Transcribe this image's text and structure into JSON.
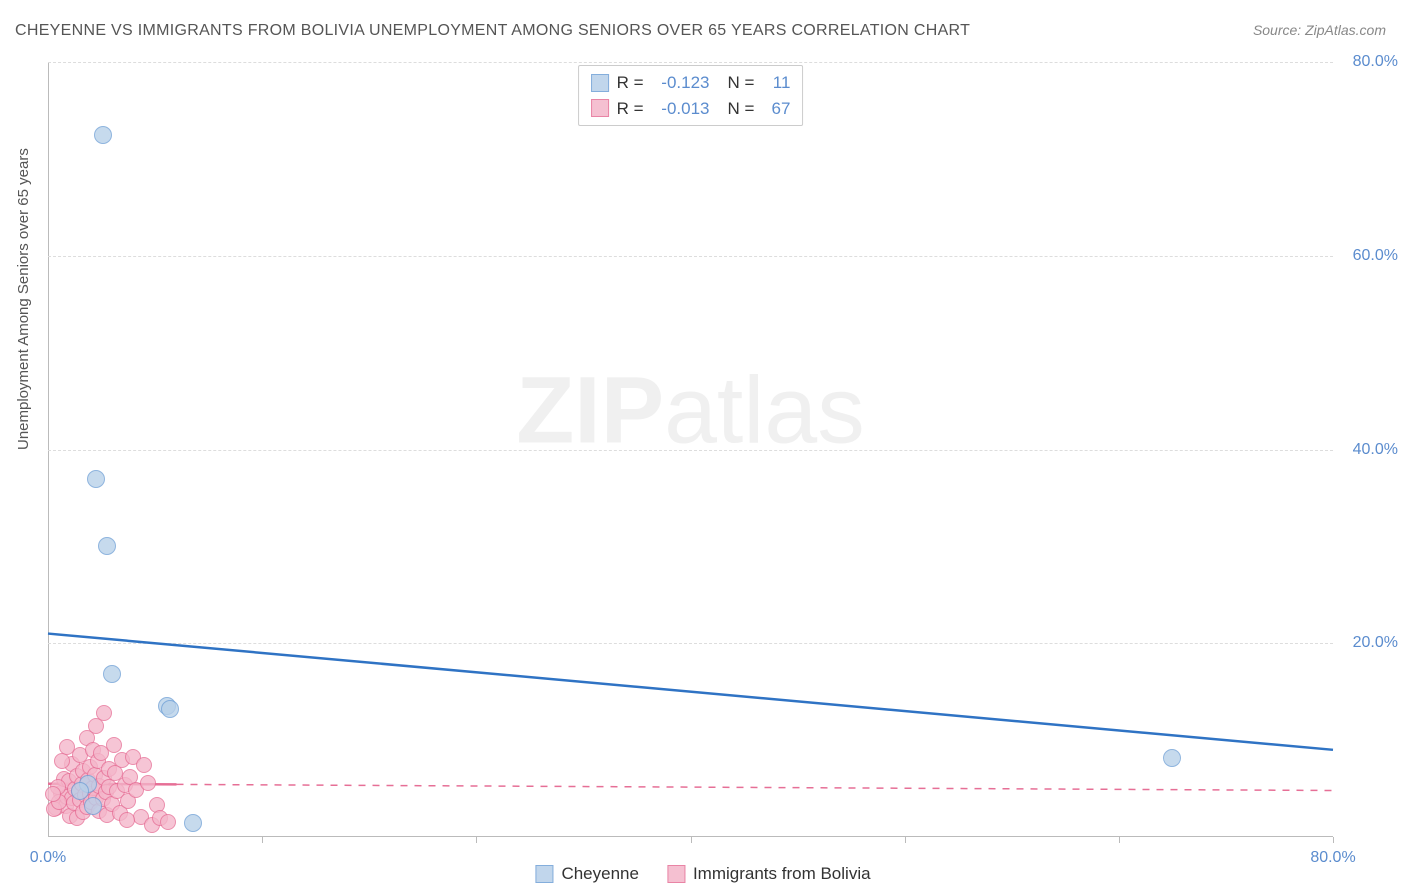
{
  "title": "CHEYENNE VS IMMIGRANTS FROM BOLIVIA UNEMPLOYMENT AMONG SENIORS OVER 65 YEARS CORRELATION CHART",
  "source": "Source: ZipAtlas.com",
  "ylabel": "Unemployment Among Seniors over 65 years",
  "watermark_a": "ZIP",
  "watermark_b": "atlas",
  "chart": {
    "type": "scatter",
    "xlim": [
      0,
      80
    ],
    "ylim": [
      0,
      80
    ],
    "xtick_labels": [
      "0.0%",
      "80.0%"
    ],
    "ytick_labels": [
      "20.0%",
      "40.0%",
      "60.0%",
      "80.0%"
    ],
    "ytick_values": [
      20,
      40,
      60,
      80
    ],
    "xtick_majors": [
      13.33,
      26.67,
      40,
      53.33,
      66.67,
      80
    ],
    "tick_color": "#5b8cce",
    "grid_color": "#dddddd",
    "background": "#ffffff"
  },
  "series_a": {
    "name": "Cheyenne",
    "R": "-0.123",
    "N": "11",
    "fill": "#b7d0e9",
    "stroke": "#6fa0d6",
    "line_color": "#2f73c4",
    "line_style": "solid",
    "line_width": 2.5,
    "line_start": {
      "x": 0,
      "y": 21
    },
    "line_end": {
      "x": 80,
      "y": 9
    },
    "radius": 9,
    "points": [
      {
        "x": 3.4,
        "y": 72.5
      },
      {
        "x": 3.0,
        "y": 37.0
      },
      {
        "x": 3.7,
        "y": 30.0
      },
      {
        "x": 4.0,
        "y": 16.8
      },
      {
        "x": 7.4,
        "y": 13.5
      },
      {
        "x": 7.6,
        "y": 13.2
      },
      {
        "x": 2.5,
        "y": 5.5
      },
      {
        "x": 2.8,
        "y": 3.2
      },
      {
        "x": 9.0,
        "y": 1.4
      },
      {
        "x": 70.0,
        "y": 8.2
      },
      {
        "x": 2.0,
        "y": 4.8
      }
    ]
  },
  "series_b": {
    "name": "Immigrants from Bolivia",
    "R": "-0.013",
    "N": "67",
    "fill": "#f4b6ca",
    "stroke": "#e66f96",
    "line_color": "#e66f96",
    "line_style": "dashed",
    "line_width": 1.5,
    "line_start": {
      "x": 0,
      "y": 5.5
    },
    "line_end": {
      "x": 80,
      "y": 4.8
    },
    "solid_segment_end_x": 8,
    "radius": 8,
    "points": [
      {
        "x": 0.5,
        "y": 3.0
      },
      {
        "x": 0.8,
        "y": 4.5
      },
      {
        "x": 1.0,
        "y": 6.0
      },
      {
        "x": 1.1,
        "y": 3.2
      },
      {
        "x": 1.2,
        "y": 4.1
      },
      {
        "x": 1.3,
        "y": 5.8
      },
      {
        "x": 1.4,
        "y": 2.2
      },
      {
        "x": 1.5,
        "y": 7.5
      },
      {
        "x": 1.5,
        "y": 4.0
      },
      {
        "x": 1.6,
        "y": 3.5
      },
      {
        "x": 1.7,
        "y": 5.0
      },
      {
        "x": 1.8,
        "y": 6.3
      },
      {
        "x": 1.8,
        "y": 2.0
      },
      {
        "x": 1.9,
        "y": 4.7
      },
      {
        "x": 2.0,
        "y": 8.5
      },
      {
        "x": 2.0,
        "y": 3.8
      },
      {
        "x": 2.1,
        "y": 5.5
      },
      {
        "x": 2.2,
        "y": 6.8
      },
      {
        "x": 2.2,
        "y": 2.6
      },
      {
        "x": 2.3,
        "y": 4.3
      },
      {
        "x": 2.4,
        "y": 10.2
      },
      {
        "x": 2.4,
        "y": 3.1
      },
      {
        "x": 2.5,
        "y": 5.9
      },
      {
        "x": 2.6,
        "y": 7.2
      },
      {
        "x": 2.6,
        "y": 4.4
      },
      {
        "x": 2.7,
        "y": 3.6
      },
      {
        "x": 2.8,
        "y": 9.0
      },
      {
        "x": 2.8,
        "y": 5.1
      },
      {
        "x": 2.9,
        "y": 6.4
      },
      {
        "x": 3.0,
        "y": 11.5
      },
      {
        "x": 3.0,
        "y": 4.0
      },
      {
        "x": 3.1,
        "y": 7.8
      },
      {
        "x": 3.2,
        "y": 2.7
      },
      {
        "x": 3.2,
        "y": 5.3
      },
      {
        "x": 3.3,
        "y": 8.7
      },
      {
        "x": 3.4,
        "y": 3.9
      },
      {
        "x": 3.5,
        "y": 12.8
      },
      {
        "x": 3.5,
        "y": 6.1
      },
      {
        "x": 3.6,
        "y": 4.6
      },
      {
        "x": 3.7,
        "y": 2.3
      },
      {
        "x": 3.8,
        "y": 7.0
      },
      {
        "x": 3.8,
        "y": 5.2
      },
      {
        "x": 4.0,
        "y": 3.4
      },
      {
        "x": 4.1,
        "y": 9.5
      },
      {
        "x": 4.2,
        "y": 6.6
      },
      {
        "x": 4.3,
        "y": 4.8
      },
      {
        "x": 4.5,
        "y": 2.5
      },
      {
        "x": 4.6,
        "y": 7.9
      },
      {
        "x": 4.8,
        "y": 5.4
      },
      {
        "x": 5.0,
        "y": 3.7
      },
      {
        "x": 5.1,
        "y": 6.2
      },
      {
        "x": 5.3,
        "y": 8.3
      },
      {
        "x": 5.5,
        "y": 4.9
      },
      {
        "x": 5.8,
        "y": 2.1
      },
      {
        "x": 6.0,
        "y": 7.4
      },
      {
        "x": 6.2,
        "y": 5.6
      },
      {
        "x": 6.5,
        "y": 1.2
      },
      {
        "x": 6.8,
        "y": 3.3
      },
      {
        "x": 7.0,
        "y": 2.0
      },
      {
        "x": 7.5,
        "y": 1.5
      },
      {
        "x": 0.4,
        "y": 2.9
      },
      {
        "x": 0.6,
        "y": 5.2
      },
      {
        "x": 0.9,
        "y": 7.8
      },
      {
        "x": 1.2,
        "y": 9.3
      },
      {
        "x": 0.7,
        "y": 3.6
      },
      {
        "x": 0.3,
        "y": 4.4
      },
      {
        "x": 4.9,
        "y": 1.8
      }
    ]
  },
  "legend_top": {
    "R_label": "R =",
    "N_label": "N ="
  },
  "legend_bottom": {
    "a_label": "Cheyenne",
    "b_label": "Immigrants from Bolivia"
  }
}
